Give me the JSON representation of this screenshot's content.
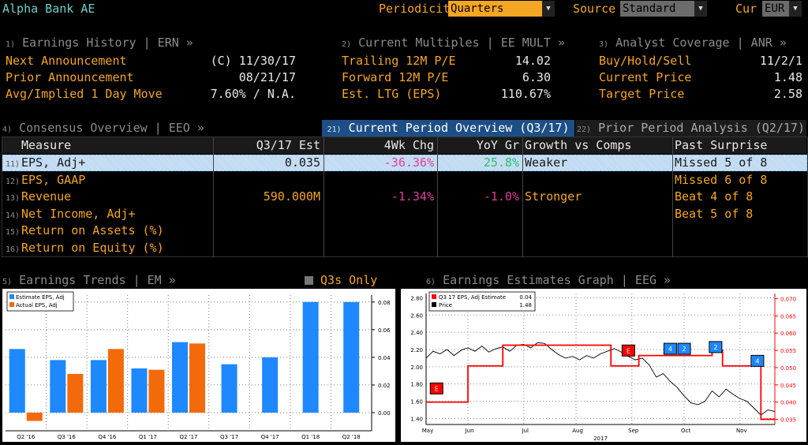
{
  "app": {
    "title": "Alpha Bank AE"
  },
  "controls": {
    "periodicity_label": "Periodicity",
    "periodicity_value": "Quarters",
    "source_label": "Source",
    "source_value": "Standard",
    "cur_label": "Cur",
    "cur_value": "EUR"
  },
  "earnings_history": {
    "num": "1)",
    "header": "Earnings History | ERN »",
    "rows": [
      {
        "label": "Next Announcement",
        "value": "(C)  11/30/17"
      },
      {
        "label": "Prior Announcement",
        "value": "08/21/17"
      },
      {
        "label": "Avg/Implied 1 Day Move",
        "value": "7.60% / N.A."
      }
    ]
  },
  "current_multiples": {
    "num": "2)",
    "header": "Current Multiples | EE MULT »",
    "rows": [
      {
        "label": "Trailing 12M P/E",
        "value": "14.02"
      },
      {
        "label": "Forward 12M P/E",
        "value": "6.30"
      },
      {
        "label": "Est. LTG (EPS)",
        "value": "110.67%"
      }
    ]
  },
  "analyst_coverage": {
    "num": "3)",
    "header": "Analyst Coverage | ANR »",
    "rows": [
      {
        "label": "Buy/Hold/Sell",
        "value": "11/2/1"
      },
      {
        "label": "Current Price",
        "value": "1.48"
      },
      {
        "label": "Target Price",
        "value": "2.58"
      }
    ]
  },
  "consensus": {
    "num": "4)",
    "header": "Consensus Overview | EEO »",
    "tab_current": {
      "num": "21)",
      "label": "Current Period Overview (Q3/17)"
    },
    "tab_prior": {
      "num": "22)",
      "label": "Prior Period Analysis (Q2/17)"
    },
    "columns": [
      "Measure",
      "Q3/17 Est",
      "4Wk Chg",
      "YoY Gr",
      "Growth vs Comps",
      "Past Surprise"
    ],
    "rows": [
      {
        "num": "11)",
        "measure": "EPS, Adj+",
        "est": "0.035",
        "chg": "-36.36%",
        "yoy": "25.8%",
        "growth": "Weaker",
        "surprise": "Missed 5 of 8"
      },
      {
        "num": "12)",
        "measure": "EPS, GAAP",
        "est": "",
        "chg": "",
        "yoy": "",
        "growth": "",
        "surprise": "Missed 6 of 8"
      },
      {
        "num": "13)",
        "measure": "Revenue",
        "est": "590.000M",
        "chg": "-1.34%",
        "yoy": "-1.0%",
        "growth": "Stronger",
        "surprise": "Beat 4 of 8"
      },
      {
        "num": "14)",
        "measure": "Net Income, Adj+",
        "est": "",
        "chg": "",
        "yoy": "",
        "growth": "",
        "surprise": "Beat 5 of 8"
      },
      {
        "num": "15)",
        "measure": "Return on Assets (%)",
        "est": "",
        "chg": "",
        "yoy": "",
        "growth": "",
        "surprise": ""
      },
      {
        "num": "16)",
        "measure": "Return on Equity (%)",
        "est": "",
        "chg": "",
        "yoy": "",
        "growth": "",
        "surprise": ""
      }
    ]
  },
  "earnings_trends": {
    "num": "5)",
    "header": "Earnings Trends | EM »",
    "toggle_label": "Q3s Only"
  },
  "earnings_estimates_graph": {
    "num": "6)",
    "header": "Earnings Estimates Graph | EEG »"
  },
  "colors": {
    "estimate": "#1e88ff",
    "actual": "#f26a0a",
    "neg": "#e0409a",
    "pos": "#3fd47a",
    "line_red": "#ff0000",
    "amber": "#f5a623"
  },
  "chart_data": [
    {
      "type": "bar",
      "categories": [
        "Q2 '16",
        "Q3 '16",
        "Q4 '16",
        "Q1 '17",
        "Q2 '17",
        "Q3 '17",
        "Q4 '17",
        "Q1 '18",
        "Q2 '18"
      ],
      "series": [
        {
          "name": "Estimate EPS, Adj",
          "values": [
            0.046,
            0.038,
            0.038,
            0.032,
            0.051,
            0.035,
            0.04,
            0.08,
            0.08
          ]
        },
        {
          "name": "Actual EPS, Adj",
          "values": [
            -0.006,
            0.028,
            0.046,
            0.031,
            0.05,
            null,
            null,
            null,
            null
          ]
        }
      ],
      "yticks": [
        "0.00",
        "0.02",
        "0.04",
        "0.06",
        "0.08"
      ],
      "ylim": [
        -0.012,
        0.085
      ]
    },
    {
      "type": "line",
      "xticks": [
        "May",
        "Jun",
        "Jul",
        "Aug",
        "Sep",
        "Oct",
        "Nov"
      ],
      "xlabel_year": "2017",
      "left_yticks": [
        "1.40",
        "1.60",
        "1.80",
        "2.00",
        "2.20",
        "2.40",
        "2.60",
        "2.80"
      ],
      "right_yticks": [
        "0.035",
        "0.040",
        "0.045",
        "0.050",
        "0.055",
        "0.060",
        "0.065",
        "0.070"
      ],
      "left_ylim": [
        1.33,
        2.85
      ],
      "right_ylim": [
        0.0335,
        0.0715
      ],
      "legend": [
        {
          "name": "Q3 17 EPS, Adj Estimate",
          "value": "0.04"
        },
        {
          "name": "Price",
          "value": "1.48"
        }
      ],
      "estimate_steps": [
        {
          "x": 0.0,
          "y": 0.04
        },
        {
          "x": 0.12,
          "y": 0.04
        },
        {
          "x": 0.12,
          "y": 0.0505
        },
        {
          "x": 0.22,
          "y": 0.0505
        },
        {
          "x": 0.22,
          "y": 0.0565
        },
        {
          "x": 0.53,
          "y": 0.0565
        },
        {
          "x": 0.53,
          "y": 0.0505
        },
        {
          "x": 0.61,
          "y": 0.0505
        },
        {
          "x": 0.61,
          "y": 0.0535
        },
        {
          "x": 0.82,
          "y": 0.0535
        },
        {
          "x": 0.82,
          "y": 0.055
        },
        {
          "x": 0.85,
          "y": 0.055
        },
        {
          "x": 0.85,
          "y": 0.0505
        },
        {
          "x": 0.96,
          "y": 0.0505
        },
        {
          "x": 0.96,
          "y": 0.035
        },
        {
          "x": 1.0,
          "y": 0.035
        }
      ],
      "price": [
        {
          "x": 0.0,
          "y": 2.1
        },
        {
          "x": 0.02,
          "y": 2.18
        },
        {
          "x": 0.04,
          "y": 2.15
        },
        {
          "x": 0.06,
          "y": 2.2
        },
        {
          "x": 0.08,
          "y": 2.13
        },
        {
          "x": 0.1,
          "y": 2.19
        },
        {
          "x": 0.12,
          "y": 2.22
        },
        {
          "x": 0.14,
          "y": 2.18
        },
        {
          "x": 0.16,
          "y": 2.24
        },
        {
          "x": 0.18,
          "y": 2.17
        },
        {
          "x": 0.2,
          "y": 2.21
        },
        {
          "x": 0.22,
          "y": 2.23
        },
        {
          "x": 0.24,
          "y": 2.18
        },
        {
          "x": 0.26,
          "y": 2.25
        },
        {
          "x": 0.28,
          "y": 2.26
        },
        {
          "x": 0.3,
          "y": 2.22
        },
        {
          "x": 0.32,
          "y": 2.28
        },
        {
          "x": 0.34,
          "y": 2.27
        },
        {
          "x": 0.36,
          "y": 2.2
        },
        {
          "x": 0.38,
          "y": 2.14
        },
        {
          "x": 0.4,
          "y": 2.1
        },
        {
          "x": 0.42,
          "y": 2.12
        },
        {
          "x": 0.44,
          "y": 2.08
        },
        {
          "x": 0.46,
          "y": 2.13
        },
        {
          "x": 0.48,
          "y": 2.1
        },
        {
          "x": 0.5,
          "y": 2.15
        },
        {
          "x": 0.52,
          "y": 2.18
        },
        {
          "x": 0.54,
          "y": 2.21
        },
        {
          "x": 0.56,
          "y": 2.17
        },
        {
          "x": 0.58,
          "y": 2.12
        },
        {
          "x": 0.6,
          "y": 2.08
        },
        {
          "x": 0.62,
          "y": 2.1
        },
        {
          "x": 0.64,
          "y": 2.02
        },
        {
          "x": 0.66,
          "y": 1.88
        },
        {
          "x": 0.68,
          "y": 1.92
        },
        {
          "x": 0.7,
          "y": 1.83
        },
        {
          "x": 0.72,
          "y": 1.76
        },
        {
          "x": 0.74,
          "y": 1.66
        },
        {
          "x": 0.76,
          "y": 1.58
        },
        {
          "x": 0.78,
          "y": 1.56
        },
        {
          "x": 0.8,
          "y": 1.6
        },
        {
          "x": 0.82,
          "y": 1.72
        },
        {
          "x": 0.84,
          "y": 1.65
        },
        {
          "x": 0.86,
          "y": 1.74
        },
        {
          "x": 0.88,
          "y": 1.68
        },
        {
          "x": 0.9,
          "y": 1.63
        },
        {
          "x": 0.92,
          "y": 1.6
        },
        {
          "x": 0.94,
          "y": 1.52
        },
        {
          "x": 0.96,
          "y": 1.44
        },
        {
          "x": 0.98,
          "y": 1.5
        },
        {
          "x": 1.0,
          "y": 1.48
        }
      ],
      "markers": [
        {
          "label": "E",
          "x": 0.03,
          "y": 0.0435,
          "color": "#ff0000"
        },
        {
          "label": "E",
          "x": 0.58,
          "y": 0.0545,
          "color": "#ff0000"
        },
        {
          "label": "4",
          "x": 0.7,
          "y": 0.055,
          "color": "#1e88ff"
        },
        {
          "label": "2",
          "x": 0.74,
          "y": 0.055,
          "color": "#1e88ff"
        },
        {
          "label": "2",
          "x": 0.83,
          "y": 0.0555,
          "color": "#1e88ff"
        },
        {
          "label": "4",
          "x": 0.95,
          "y": 0.0515,
          "color": "#1e88ff"
        }
      ]
    }
  ]
}
